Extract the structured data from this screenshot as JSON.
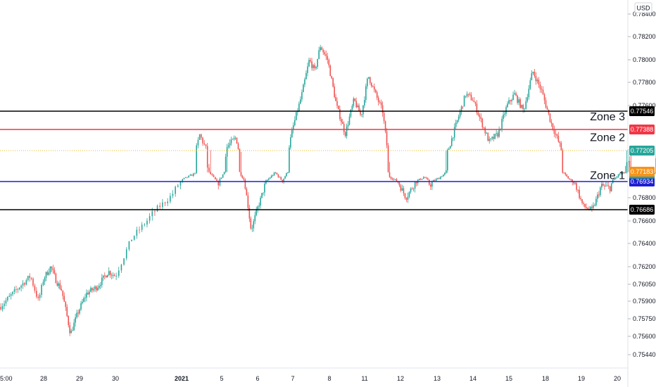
{
  "chart_data": {
    "type": "candlestick",
    "currency": "USD",
    "ylim": [
      0.7532,
      0.7842
    ],
    "y_ticks": [
      {
        "value": 0.784,
        "label": "0.78400"
      },
      {
        "value": 0.782,
        "label": "0.78200"
      },
      {
        "value": 0.78,
        "label": "0.78000"
      },
      {
        "value": 0.778,
        "label": "0.77800"
      },
      {
        "value": 0.776,
        "label": "0.77600"
      },
      {
        "value": 0.768,
        "label": "0.76800"
      },
      {
        "value": 0.766,
        "label": "0.76600"
      },
      {
        "value": 0.764,
        "label": "0.76400"
      },
      {
        "value": 0.762,
        "label": "0.76200"
      },
      {
        "value": 0.7605,
        "label": "0.76050"
      },
      {
        "value": 0.759,
        "label": "0.75900"
      },
      {
        "value": 0.7575,
        "label": "0.75750"
      },
      {
        "value": 0.756,
        "label": "0.75600"
      },
      {
        "value": 0.7544,
        "label": "0.75440"
      }
    ],
    "x_labels": [
      {
        "label": "5:00",
        "x": 0.0,
        "bold": false
      },
      {
        "label": "28",
        "x": 1.0,
        "bold": false
      },
      {
        "label": "29",
        "x": 2.0,
        "bold": false
      },
      {
        "label": "30",
        "x": 3.0,
        "bold": false
      },
      {
        "label": "2021",
        "x": 4.0,
        "bold": true
      },
      {
        "label": "5",
        "x": 5.0,
        "bold": false
      },
      {
        "label": "6",
        "x": 6.0,
        "bold": false
      },
      {
        "label": "7",
        "x": 7.0,
        "bold": false
      },
      {
        "label": "8",
        "x": 8.0,
        "bold": false
      },
      {
        "label": "11",
        "x": 9.0,
        "bold": false
      },
      {
        "label": "12",
        "x": 10.0,
        "bold": false
      },
      {
        "label": "13",
        "x": 11.0,
        "bold": false
      },
      {
        "label": "14",
        "x": 12.0,
        "bold": false
      },
      {
        "label": "15",
        "x": 13.0,
        "bold": false
      },
      {
        "label": "18",
        "x": 14.0,
        "bold": false
      },
      {
        "label": "19",
        "x": 15.0,
        "bold": false
      },
      {
        "label": "20",
        "x": 16.0,
        "bold": false
      }
    ],
    "x_range": [
      0.0,
      17.1
    ],
    "horizontal_lines": [
      {
        "value": 0.77546,
        "label": "0.77546",
        "color": "#000000",
        "text_color": "#ffffff",
        "style": "solid"
      },
      {
        "value": 0.77388,
        "label": "0.77388",
        "color": "#f23645",
        "text_color": "#ffffff",
        "style": "solid"
      },
      {
        "value": 0.77205,
        "label": "0.77205",
        "color": "#e8b923",
        "text_color": "#ffffff",
        "style": "dotted",
        "tag_color": "#26a69a"
      },
      {
        "value": 0.76934,
        "label": "0.76934",
        "color": "#1e1ed2",
        "text_color": "#ffffff",
        "style": "solid"
      },
      {
        "value": 0.76686,
        "label": "0.76686",
        "color": "#000000",
        "text_color": "#ffffff",
        "style": "solid"
      }
    ],
    "extra_tags": [
      {
        "value": 0.77135,
        "label": "08:51",
        "color": "#26a69a"
      },
      {
        "value": 0.77183,
        "label": "0.77183",
        "color": "#f7931a"
      }
    ],
    "zones": [
      {
        "label": "Zone 3",
        "value": 0.7748
      },
      {
        "label": "Zone 2",
        "value": 0.773
      },
      {
        "label": "Zone 1",
        "value": 0.7703
      }
    ],
    "anchors": [
      [
        0.0,
        0.7585
      ],
      [
        0.25,
        0.7595
      ],
      [
        0.45,
        0.7603
      ],
      [
        0.7,
        0.7612
      ],
      [
        0.88,
        0.759
      ],
      [
        1.0,
        0.761
      ],
      [
        1.2,
        0.762
      ],
      [
        1.35,
        0.7608
      ],
      [
        1.5,
        0.76
      ],
      [
        1.75,
        0.7562
      ],
      [
        1.95,
        0.758
      ],
      [
        2.2,
        0.7597
      ],
      [
        2.5,
        0.7603
      ],
      [
        2.8,
        0.7616
      ],
      [
        3.0,
        0.7612
      ],
      [
        3.25,
        0.7645
      ],
      [
        3.55,
        0.7665
      ],
      [
        3.85,
        0.7682
      ],
      [
        4.05,
        0.77
      ],
      [
        4.3,
        0.7712
      ],
      [
        4.45,
        0.7734
      ],
      [
        4.7,
        0.7715
      ],
      [
        4.9,
        0.769
      ],
      [
        5.1,
        0.7722
      ],
      [
        5.4,
        0.7732
      ],
      [
        5.62,
        0.7698
      ],
      [
        5.82,
        0.7652
      ],
      [
        6.0,
        0.767
      ],
      [
        6.25,
        0.7695
      ],
      [
        6.5,
        0.7716
      ],
      [
        6.7,
        0.7695
      ],
      [
        7.0,
        0.774
      ],
      [
        7.25,
        0.777
      ],
      [
        7.45,
        0.78
      ],
      [
        7.6,
        0.779
      ],
      [
        7.75,
        0.7812
      ],
      [
        7.95,
        0.78
      ],
      [
        8.2,
        0.776
      ],
      [
        8.45,
        0.7735
      ],
      [
        8.7,
        0.7765
      ],
      [
        8.9,
        0.775
      ],
      [
        9.1,
        0.7786
      ],
      [
        9.3,
        0.777
      ],
      [
        9.5,
        0.7755
      ],
      [
        9.7,
        0.7705
      ],
      [
        9.9,
        0.7695
      ],
      [
        10.15,
        0.768
      ],
      [
        10.45,
        0.7695
      ],
      [
        10.65,
        0.7705
      ],
      [
        10.8,
        0.769
      ],
      [
        11.05,
        0.7702
      ],
      [
        11.3,
        0.772
      ],
      [
        11.55,
        0.7745
      ],
      [
        11.8,
        0.777
      ],
      [
        12.0,
        0.7765
      ],
      [
        12.2,
        0.7748
      ],
      [
        12.45,
        0.7728
      ],
      [
        12.7,
        0.7735
      ],
      [
        12.95,
        0.776
      ],
      [
        13.15,
        0.777
      ],
      [
        13.4,
        0.7755
      ],
      [
        13.65,
        0.779
      ],
      [
        13.9,
        0.7772
      ],
      [
        14.15,
        0.7745
      ],
      [
        14.4,
        0.7725
      ],
      [
        14.65,
        0.77
      ],
      [
        14.85,
        0.769
      ],
      [
        15.05,
        0.7672
      ],
      [
        15.3,
        0.7668
      ],
      [
        15.55,
        0.769
      ],
      [
        15.8,
        0.7688
      ],
      [
        16.05,
        0.7712
      ],
      [
        16.3,
        0.7718
      ],
      [
        16.55,
        0.7703
      ],
      [
        16.75,
        0.7696
      ],
      [
        16.95,
        0.7705
      ],
      [
        17.1,
        0.772
      ]
    ],
    "n_candles": 440,
    "up_color": "#26a69a",
    "down_color": "#ef5350"
  }
}
